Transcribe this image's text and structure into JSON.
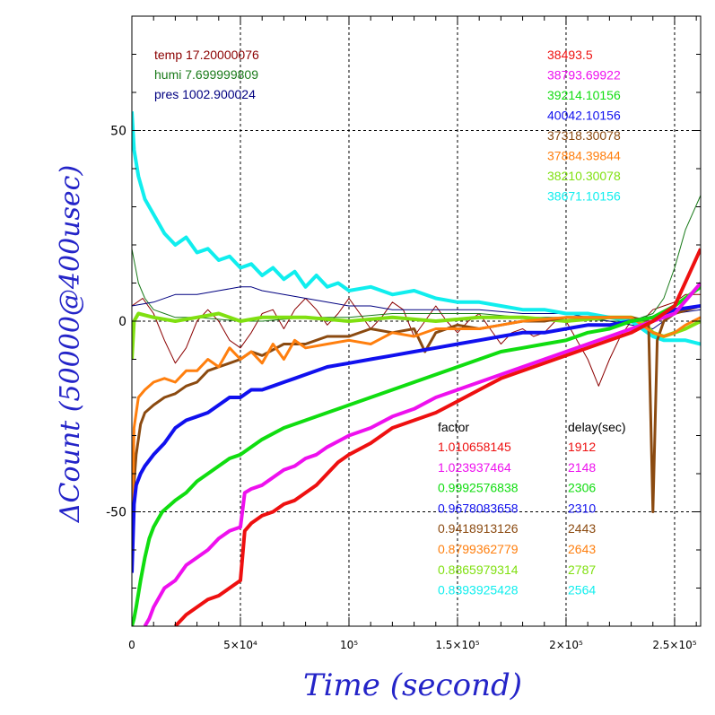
{
  "chart_data": {
    "type": "line",
    "xlabel": "Time (second)",
    "ylabel": "ΔCount (50000@400usec)",
    "xlim": [
      0,
      262000
    ],
    "ylim": [
      -80,
      80
    ],
    "x_ticks": [
      {
        "value": 0,
        "label": "0"
      },
      {
        "value": 50000,
        "label": "5×10⁴"
      },
      {
        "value": 100000,
        "label": "10⁵"
      },
      {
        "value": 150000,
        "label": "1.5×10⁵"
      },
      {
        "value": 200000,
        "label": "2×10⁵"
      },
      {
        "value": 250000,
        "label": "2.5×10⁵"
      }
    ],
    "y_ticks": [
      {
        "value": -50,
        "label": "-50"
      },
      {
        "value": 0,
        "label": "0"
      },
      {
        "value": 50,
        "label": "50"
      }
    ],
    "grid": true,
    "env": [
      {
        "text": "temp 17.20000076",
        "color": "#8b0000"
      },
      {
        "text": "humi 7.699999809",
        "color": "#1a7a1a"
      },
      {
        "text": "pres 1002.900024",
        "color": "#000080"
      }
    ],
    "series_labels": [
      {
        "text": "38493.5",
        "color": "#ee1010"
      },
      {
        "text": "38793.69922",
        "color": "#ee10ee"
      },
      {
        "text": "39214.10156",
        "color": "#10dd10"
      },
      {
        "text": "40042.10156",
        "color": "#1010ee"
      },
      {
        "text": "37318.30078",
        "color": "#8b4a10"
      },
      {
        "text": "37884.39844",
        "color": "#ff7f0e"
      },
      {
        "text": "38210.30078",
        "color": "#80e010"
      },
      {
        "text": "38671.10156",
        "color": "#10eeee"
      }
    ],
    "table": {
      "header_factor": "factor",
      "header_delay": "delay(sec)",
      "rows": [
        {
          "factor": "1.010658145",
          "delay": "1912",
          "color": "#ee1010"
        },
        {
          "factor": "1.023937464",
          "delay": "2148",
          "color": "#ee10ee"
        },
        {
          "factor": "0.9992576838",
          "delay": "2306",
          "color": "#10dd10"
        },
        {
          "factor": "0.9678083658",
          "delay": "2310",
          "color": "#1010ee"
        },
        {
          "factor": "0.9418913126",
          "delay": "2443",
          "color": "#8b4a10"
        },
        {
          "factor": "0.8799362779",
          "delay": "2643",
          "color": "#ff7f0e"
        },
        {
          "factor": "0.8865979314",
          "delay": "2787",
          "color": "#80e010"
        },
        {
          "factor": "0.8393925428",
          "delay": "2564",
          "color": "#10eeee"
        }
      ]
    },
    "series": [
      {
        "color": "#8b0000",
        "width": 1,
        "x": [
          0,
          5000,
          10000,
          15000,
          20000,
          25000,
          30000,
          35000,
          40000,
          45000,
          50000,
          55000,
          60000,
          65000,
          70000,
          75000,
          80000,
          85000,
          90000,
          95000,
          100000,
          105000,
          110000,
          115000,
          120000,
          125000,
          130000,
          135000,
          140000,
          145000,
          150000,
          155000,
          160000,
          165000,
          170000,
          175000,
          180000,
          185000,
          190000,
          195000,
          200000,
          205000,
          210000,
          215000,
          220000,
          225000,
          230000,
          235000,
          240000,
          245000,
          250000,
          255000,
          262000
        ],
        "y": [
          4,
          6,
          2,
          -5,
          -11,
          -7,
          0,
          3,
          0,
          -5,
          -7,
          -3,
          2,
          3,
          -2,
          3,
          6,
          3,
          -1,
          2,
          6,
          2,
          -2,
          1,
          5,
          3,
          -4,
          0,
          4,
          0,
          -3,
          0,
          2,
          -2,
          -6,
          -3,
          -2,
          -4,
          -3,
          0,
          0,
          -5,
          -10,
          -17,
          -10,
          -4,
          0,
          0,
          3,
          4,
          5,
          7,
          7
        ]
      },
      {
        "color": "#1a7a1a",
        "width": 1,
        "x": [
          0,
          3000,
          6000,
          10000,
          15000,
          20000,
          30000,
          40000,
          50000,
          60000,
          70000,
          80000,
          90000,
          100000,
          120000,
          140000,
          160000,
          180000,
          200000,
          220000,
          230000,
          240000,
          245000,
          250000,
          255000,
          262000
        ],
        "y": [
          19,
          10,
          6,
          3,
          2,
          1,
          1,
          0.5,
          0,
          0,
          0.5,
          1,
          1,
          1,
          2,
          2,
          2,
          1,
          1,
          0,
          0,
          2,
          6,
          14,
          24,
          33
        ]
      },
      {
        "color": "#000080",
        "width": 1,
        "x": [
          0,
          10000,
          20000,
          30000,
          40000,
          50000,
          55000,
          60000,
          70000,
          80000,
          90000,
          100000,
          110000,
          120000,
          140000,
          160000,
          180000,
          200000,
          220000,
          240000,
          250000,
          262000
        ],
        "y": [
          4,
          5,
          7,
          7,
          8,
          9,
          9,
          8,
          7,
          6,
          5,
          4,
          4,
          3,
          3,
          3,
          2,
          2,
          0,
          -2,
          2,
          3
        ]
      },
      {
        "color": "#10eeee",
        "width": 4,
        "x": [
          0,
          1000,
          3000,
          6000,
          10000,
          15000,
          20000,
          25000,
          30000,
          35000,
          40000,
          45000,
          50000,
          55000,
          60000,
          65000,
          70000,
          75000,
          80000,
          85000,
          90000,
          95000,
          100000,
          110000,
          120000,
          130000,
          140000,
          150000,
          160000,
          170000,
          180000,
          190000,
          200000,
          210000,
          220000,
          230000,
          235000,
          240000,
          245000,
          250000,
          255000,
          262000
        ],
        "y": [
          55,
          45,
          38,
          32,
          28,
          23,
          20,
          22,
          18,
          19,
          16,
          17,
          14,
          15,
          12,
          14,
          11,
          13,
          9,
          12,
          9,
          10,
          8,
          9,
          7,
          8,
          6,
          5,
          5,
          4,
          3,
          3,
          2,
          2,
          1,
          0,
          -2,
          -4,
          -5,
          -5,
          -5,
          -6
        ]
      },
      {
        "color": "#80e010",
        "width": 4,
        "x": [
          0,
          1000,
          3000,
          10000,
          20000,
          30000,
          40000,
          50000,
          60000,
          80000,
          100000,
          120000,
          140000,
          160000,
          180000,
          200000,
          220000,
          230000,
          235000,
          240000,
          245000,
          250000,
          255000,
          262000
        ],
        "y": [
          -10,
          0,
          2,
          1,
          0,
          1,
          2,
          0,
          1,
          1,
          0,
          1,
          0,
          1,
          1,
          0,
          1,
          1,
          0,
          -3,
          -4,
          -3,
          -2,
          0
        ]
      },
      {
        "color": "#8b4a10",
        "width": 3,
        "x": [
          0,
          2000,
          4000,
          6000,
          10000,
          15000,
          20000,
          25000,
          30000,
          35000,
          40000,
          45000,
          50000,
          55000,
          60000,
          70000,
          80000,
          90000,
          100000,
          110000,
          120000,
          130000,
          135000,
          140000,
          150000,
          160000,
          170000,
          180000,
          190000,
          200000,
          220000,
          230000,
          238000,
          240000,
          242000,
          245000,
          250000,
          262000
        ],
        "y": [
          -50,
          -35,
          -27,
          -24,
          -22,
          -20,
          -19,
          -17,
          -16,
          -13,
          -12,
          -11,
          -10,
          -8,
          -9,
          -6,
          -6,
          -4,
          -4,
          -2,
          -3,
          -2,
          -8,
          -3,
          -1,
          -2,
          -1,
          0,
          0,
          1,
          1,
          1,
          0,
          -50,
          -5,
          0,
          2,
          4
        ]
      },
      {
        "color": "#ff7f0e",
        "width": 3,
        "x": [
          0,
          1000,
          3000,
          6000,
          10000,
          15000,
          20000,
          25000,
          30000,
          35000,
          40000,
          45000,
          50000,
          55000,
          60000,
          65000,
          70000,
          75000,
          80000,
          90000,
          100000,
          110000,
          120000,
          130000,
          140000,
          150000,
          160000,
          170000,
          180000,
          200000,
          220000,
          230000,
          240000,
          245000,
          250000,
          255000,
          262000
        ],
        "y": [
          -60,
          -28,
          -20,
          -18,
          -16,
          -15,
          -16,
          -13,
          -13,
          -10,
          -12,
          -7,
          -10,
          -8,
          -11,
          -6,
          -10,
          -5,
          -7,
          -6,
          -5,
          -6,
          -3,
          -4,
          -2,
          -2,
          -2,
          -1,
          0,
          1,
          1,
          1,
          -3,
          -4,
          -3,
          -1,
          1
        ]
      },
      {
        "color": "#1010ee",
        "width": 4,
        "x": [
          0,
          1000,
          2000,
          4000,
          6000,
          10000,
          15000,
          20000,
          25000,
          30000,
          35000,
          40000,
          45000,
          50000,
          55000,
          60000,
          65000,
          70000,
          75000,
          80000,
          90000,
          100000,
          110000,
          120000,
          130000,
          140000,
          150000,
          160000,
          170000,
          180000,
          190000,
          200000,
          210000,
          220000,
          230000,
          240000,
          250000,
          262000
        ],
        "y": [
          -66,
          -48,
          -43,
          -40,
          -38,
          -35,
          -32,
          -28,
          -26,
          -25,
          -24,
          -22,
          -20,
          -20,
          -18,
          -18,
          -17,
          -16,
          -15,
          -14,
          -12,
          -11,
          -10,
          -9,
          -8,
          -7,
          -6,
          -5,
          -4,
          -3,
          -3,
          -2,
          -1,
          -1,
          0,
          1,
          3,
          4
        ]
      },
      {
        "color": "#10dd10",
        "width": 4,
        "x": [
          0,
          1000,
          2000,
          4000,
          6000,
          8000,
          10000,
          12000,
          14000,
          16000,
          18000,
          20000,
          25000,
          30000,
          35000,
          40000,
          45000,
          50000,
          55000,
          60000,
          70000,
          80000,
          90000,
          100000,
          110000,
          120000,
          130000,
          140000,
          150000,
          160000,
          170000,
          180000,
          190000,
          200000,
          210000,
          220000,
          230000,
          240000,
          250000,
          262000
        ],
        "y": [
          -80,
          -78,
          -75,
          -68,
          -62,
          -57,
          -54,
          -52,
          -50,
          -49,
          -48,
          -47,
          -45,
          -42,
          -40,
          -38,
          -36,
          -35,
          -33,
          -31,
          -28,
          -26,
          -24,
          -22,
          -20,
          -18,
          -16,
          -14,
          -12,
          -10,
          -8,
          -7,
          -6,
          -5,
          -3,
          -2,
          0,
          1,
          4,
          9
        ]
      },
      {
        "color": "#ee10ee",
        "width": 4,
        "x": [
          6000,
          8000,
          10000,
          12000,
          15000,
          20000,
          25000,
          30000,
          35000,
          40000,
          45000,
          50000,
          52000,
          55000,
          60000,
          65000,
          70000,
          75000,
          80000,
          85000,
          90000,
          100000,
          110000,
          120000,
          130000,
          140000,
          150000,
          160000,
          170000,
          180000,
          190000,
          200000,
          210000,
          220000,
          230000,
          240000,
          250000,
          262000
        ],
        "y": [
          -80,
          -78,
          -75,
          -73,
          -70,
          -68,
          -64,
          -62,
          -60,
          -57,
          -55,
          -54,
          -45,
          -44,
          -43,
          -41,
          -39,
          -38,
          -36,
          -35,
          -33,
          -30,
          -28,
          -25,
          -23,
          -20,
          -18,
          -16,
          -14,
          -12,
          -10,
          -8,
          -6,
          -4,
          -2,
          0,
          2,
          10
        ]
      },
      {
        "color": "#ee1010",
        "width": 4,
        "x": [
          20000,
          25000,
          30000,
          35000,
          40000,
          45000,
          50000,
          52000,
          55000,
          60000,
          65000,
          70000,
          75000,
          80000,
          85000,
          90000,
          95000,
          100000,
          110000,
          120000,
          130000,
          140000,
          150000,
          160000,
          170000,
          180000,
          190000,
          200000,
          210000,
          220000,
          230000,
          240000,
          250000,
          262000
        ],
        "y": [
          -80,
          -77,
          -75,
          -73,
          -72,
          -70,
          -68,
          -55,
          -53,
          -51,
          -50,
          -48,
          -47,
          -45,
          -43,
          -40,
          -37,
          -35,
          -32,
          -28,
          -26,
          -24,
          -21,
          -18,
          -15,
          -13,
          -11,
          -9,
          -7,
          -5,
          -3,
          0,
          4,
          19
        ]
      }
    ]
  }
}
